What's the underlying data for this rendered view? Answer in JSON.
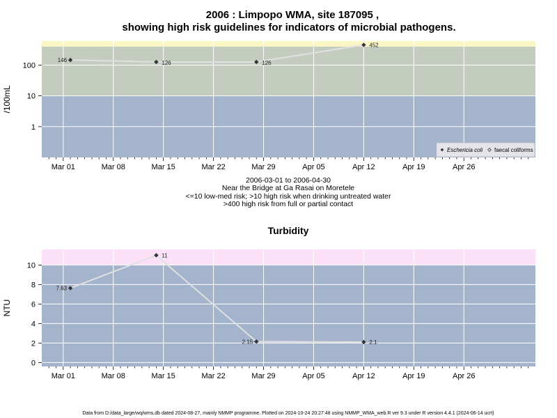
{
  "titles": {
    "line1": "2006 : Limpopo WMA, site 187095 ,",
    "line2": "showing high risk guidelines for indicators of microbial pathogens.",
    "panel2": "Turbidity"
  },
  "subtitles": [
    "2006-03-01 to 2006-04-30",
    "Near the Bridge at Ga Rasai on Moretele",
    "<=10 low-med risk; >10 high risk when drinking untreated water",
    ">400 high risk from full or partial contact"
  ],
  "footer": "Data from D:/data_large/wq/wms.db dated 2024-08-27, mainly NMMP programme. Plotted on 2024-10-24 20:27:48 using NMMP_WMA_web.R ver 9.3 under R version 4.4.1 (2024-06-14 ucrt)",
  "colors": {
    "low_band": "#a3b4cc",
    "mid_band": "#c4ccc0",
    "high_band": "#fbf6c4",
    "turb_high_band": "#fbe0f8",
    "line": "#e0e0e0",
    "point": "#333333"
  },
  "chart_data": [
    {
      "type": "scatter",
      "title": "",
      "ylabel": "/100mL",
      "yscale": "log",
      "x_axis": {
        "type": "date",
        "range": [
          "2006-02-26",
          "2006-05-06"
        ],
        "ticks": [
          "Mar 01",
          "Mar 08",
          "Mar 15",
          "Mar 22",
          "Mar 29",
          "Apr 05",
          "Apr 12",
          "Apr 19",
          "Apr 26"
        ],
        "tick_dates": [
          "2006-03-01",
          "2006-03-08",
          "2006-03-15",
          "2006-03-22",
          "2006-03-29",
          "2006-04-05",
          "2006-04-12",
          "2006-04-19",
          "2006-04-26"
        ]
      },
      "y_ticks": [
        1,
        10,
        100
      ],
      "y_tick_labels": [
        "1",
        "10",
        "100"
      ],
      "bands": [
        {
          "from": 0.1,
          "to": 10,
          "color": "#a3b4cc"
        },
        {
          "from": 10,
          "to": 400,
          "color": "#c4ccc0"
        },
        {
          "from": 400,
          "to": 600,
          "color": "#fbf6c4"
        }
      ],
      "series": [
        {
          "name": "Eschericia coli",
          "marker": "filled-diamond",
          "x": [
            "2006-03-02",
            "2006-03-14",
            "2006-03-28",
            "2006-04-12"
          ],
          "y": [
            146,
            126,
            126,
            452
          ],
          "labels": [
            "146",
            "126",
            "126",
            "452"
          ]
        }
      ],
      "legend": {
        "position": "bottom-right",
        "entries": [
          "Eschericia coli",
          "faecal coliforms"
        ]
      },
      "grid": true
    },
    {
      "type": "scatter",
      "title": "Turbidity",
      "ylabel": "NTU",
      "yscale": "linear",
      "x_axis": {
        "type": "date",
        "range": [
          "2006-02-26",
          "2006-05-06"
        ],
        "ticks": [
          "Mar 01",
          "Mar 08",
          "Mar 15",
          "Mar 22",
          "Mar 29",
          "Apr 05",
          "Apr 12",
          "Apr 19",
          "Apr 26"
        ],
        "tick_dates": [
          "2006-03-01",
          "2006-03-08",
          "2006-03-15",
          "2006-03-22",
          "2006-03-29",
          "2006-04-05",
          "2006-04-12",
          "2006-04-19",
          "2006-04-26"
        ]
      },
      "ylim": [
        -0.4,
        11.6
      ],
      "y_ticks": [
        0,
        2,
        4,
        6,
        8,
        10
      ],
      "y_tick_labels": [
        "0",
        "2",
        "4",
        "6",
        "8",
        "10"
      ],
      "bands": [
        {
          "from": -0.4,
          "to": 10,
          "color": "#a3b4cc"
        },
        {
          "from": 10,
          "to": 11.6,
          "color": "#fbe0f8"
        }
      ],
      "series": [
        {
          "marker": "filled-diamond",
          "x": [
            "2006-03-02",
            "2006-03-14",
            "2006-03-28",
            "2006-04-12"
          ],
          "y": [
            7.63,
            11,
            2.15,
            2.1
          ],
          "labels": [
            "7.63",
            "11",
            "2.15",
            "2.1"
          ]
        }
      ],
      "grid": true
    }
  ]
}
